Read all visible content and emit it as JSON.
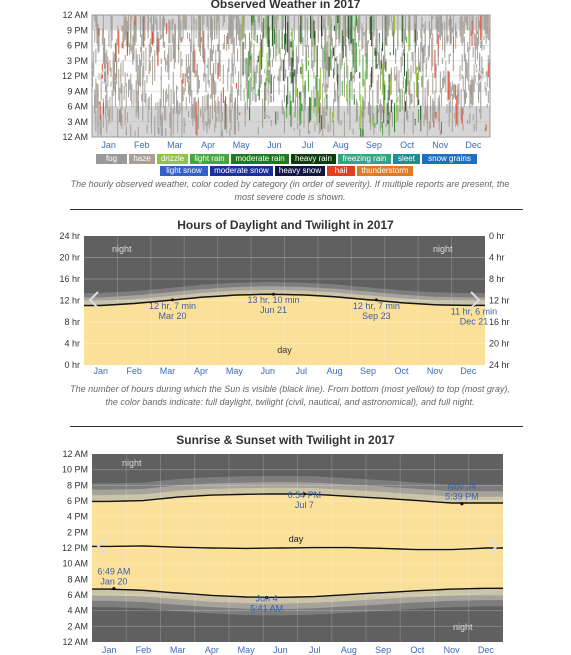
{
  "chart_data": [
    {
      "type": "heatmap",
      "title": "Observed Weather in 2017",
      "y_ticks": [
        "12 AM",
        "9 PM",
        "6 PM",
        "3 PM",
        "12 PM",
        "9 AM",
        "6 AM",
        "3 AM",
        "12 AM"
      ],
      "x_ticks": [
        "Jan",
        "Feb",
        "Mar",
        "Apr",
        "May",
        "Jun",
        "Jul",
        "Aug",
        "Sep",
        "Oct",
        "Nov",
        "Dec"
      ],
      "legend": [
        {
          "label": "fog",
          "color": "#999999"
        },
        {
          "label": "haze",
          "color": "#a89f92"
        },
        {
          "label": "drizzle",
          "color": "#8fc43d"
        },
        {
          "label": "light rain",
          "color": "#47a53b"
        },
        {
          "label": "moderate rain",
          "color": "#1f7a1f"
        },
        {
          "label": "heavy rain",
          "color": "#0c3d0c"
        },
        {
          "label": "freezing rain",
          "color": "#2fa882"
        },
        {
          "label": "sleet",
          "color": "#1a9090"
        },
        {
          "label": "snow grains",
          "color": "#1f6fc0"
        },
        {
          "label": "light snow",
          "color": "#3262c8"
        },
        {
          "label": "moderate snow",
          "color": "#1b2f9a"
        },
        {
          "label": "heavy snow",
          "color": "#101640"
        },
        {
          "label": "hail",
          "color": "#e0401e"
        },
        {
          "label": "thunderstorm",
          "color": "#e07a25"
        }
      ],
      "caption": "The hourly observed weather, color coded by category (in order of severity). If multiple reports are present, the most severe code is shown."
    },
    {
      "type": "area",
      "title": "Hours of Daylight and Twilight in 2017",
      "y_left_ticks": [
        "24 hr",
        "20 hr",
        "16 hr",
        "12 hr",
        "8 hr",
        "4 hr",
        "0 hr"
      ],
      "y_right_ticks": [
        "0 hr",
        "4 hr",
        "8 hr",
        "12 hr",
        "16 hr",
        "20 hr",
        "24 hr"
      ],
      "x_ticks": [
        "Jan",
        "Feb",
        "Mar",
        "Apr",
        "May",
        "Jun",
        "Jul",
        "Aug",
        "Sep",
        "Oct",
        "Nov",
        "Dec"
      ],
      "ylim": [
        0,
        24
      ],
      "region_labels": {
        "night": "night",
        "day": "day"
      },
      "daylight_hours_monthly": [
        11.07,
        11.45,
        12.0,
        12.6,
        13.0,
        13.17,
        13.05,
        12.7,
        12.15,
        11.6,
        11.2,
        11.08
      ],
      "annotations": [
        {
          "line1": "12 hr, 7 min",
          "line2": "Mar 20",
          "x": 2.65,
          "y": 12.12
        },
        {
          "line1": "13 hr, 10 min",
          "line2": "Jun 21",
          "x": 5.67,
          "y": 13.17
        },
        {
          "line1": "12 hr, 7 min",
          "line2": "Sep 23",
          "x": 8.75,
          "y": 12.12
        },
        {
          "line1": "11 hr, 6 min",
          "line2": "Dec 21",
          "x": 11.67,
          "y": 11.1
        }
      ],
      "caption": "The number of hours during which the Sun is visible (black line). From bottom (most yellow) to top (most gray), the color bands indicate: full daylight, twilight (civil, nautical, and astronomical), and full night."
    },
    {
      "type": "area",
      "title": "Sunrise & Sunset with Twilight in 2017",
      "y_ticks": [
        "12 AM",
        "10 PM",
        "8 PM",
        "6 PM",
        "4 PM",
        "2 PM",
        "12 PM",
        "10 AM",
        "8 AM",
        "6 AM",
        "4 AM",
        "2 AM",
        "12 AM"
      ],
      "x_ticks": [
        "Jan",
        "Feb",
        "Mar",
        "Apr",
        "May",
        "Jun",
        "Jul",
        "Aug",
        "Sep",
        "Oct",
        "Nov",
        "Dec"
      ],
      "ylim": [
        0,
        24
      ],
      "region_labels": {
        "night_top": "night",
        "night_bottom": "night",
        "day": "day"
      },
      "sunrise_hours_monthly": [
        6.75,
        6.6,
        6.25,
        5.95,
        5.75,
        5.7,
        5.8,
        6.05,
        6.3,
        6.55,
        6.75,
        6.85
      ],
      "sunset_hours_monthly": [
        5.95,
        6.05,
        6.5,
        6.75,
        6.85,
        6.9,
        6.85,
        6.6,
        6.35,
        6.05,
        5.75,
        5.75
      ],
      "solar_noon_hours_monthly": [
        12.2,
        12.25,
        12.1,
        12.0,
        11.95,
        12.0,
        12.05,
        12.05,
        11.95,
        11.8,
        11.8,
        12.0
      ],
      "annotations": [
        {
          "line1": "6:54 PM",
          "line2": "Jul 7",
          "x": 6.2,
          "y": 18.9
        },
        {
          "line1": "Nov 24",
          "line2": "5:39 PM",
          "x": 10.8,
          "y": 17.65
        },
        {
          "line1": "Jun 4",
          "line2": "5:41 AM",
          "x": 5.1,
          "y": 5.68
        },
        {
          "line1": "6:49 AM",
          "line2": "Jan 20",
          "x": 0.64,
          "y": 6.82
        }
      ]
    }
  ]
}
